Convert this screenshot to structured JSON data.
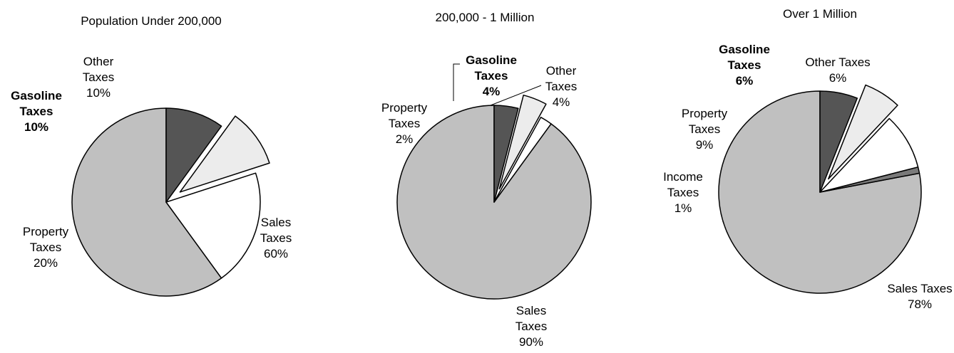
{
  "chart_data": [
    {
      "type": "pie",
      "title": "Population Under 200,000",
      "slices": [
        {
          "label": "Sales Taxes",
          "value": 60,
          "value_label": "60%",
          "color": "#c0c0c0",
          "exploded": false,
          "bold": false
        },
        {
          "label": "Property Taxes",
          "value": 20,
          "value_label": "20%",
          "color": "#ffffff",
          "exploded": false,
          "bold": false
        },
        {
          "label": "Gasoline Taxes",
          "value": 10,
          "value_label": "10%",
          "color": "#ececec",
          "exploded": true,
          "bold": true
        },
        {
          "label": "Other Taxes",
          "value": 10,
          "value_label": "10%",
          "color": "#555555",
          "exploded": false,
          "bold": false
        }
      ]
    },
    {
      "type": "pie",
      "title": "200,000 - 1 Million",
      "slices": [
        {
          "label": "Sales Taxes",
          "value": 90,
          "value_label": "90%",
          "color": "#c0c0c0",
          "exploded": false,
          "bold": false
        },
        {
          "label": "Property Taxes",
          "value": 2,
          "value_label": "2%",
          "color": "#ffffff",
          "exploded": false,
          "bold": false
        },
        {
          "label": "Gasoline Taxes",
          "value": 4,
          "value_label": "4%",
          "color": "#ececec",
          "exploded": true,
          "bold": true
        },
        {
          "label": "Other Taxes",
          "value": 4,
          "value_label": "4%",
          "color": "#555555",
          "exploded": false,
          "bold": false
        }
      ]
    },
    {
      "type": "pie",
      "title": "Over 1 Million",
      "slices": [
        {
          "label": "Sales Taxes",
          "value": 78,
          "value_label": "78%",
          "color": "#c0c0c0",
          "exploded": false,
          "bold": false
        },
        {
          "label": "Income Taxes",
          "value": 1,
          "value_label": "1%",
          "color": "#7a7a7a",
          "exploded": false,
          "bold": false
        },
        {
          "label": "Property Taxes",
          "value": 9,
          "value_label": "9%",
          "color": "#ffffff",
          "exploded": false,
          "bold": false
        },
        {
          "label": "Gasoline Taxes",
          "value": 6,
          "value_label": "6%",
          "color": "#ececec",
          "exploded": true,
          "bold": true
        },
        {
          "label": "Other Taxes",
          "value": 6,
          "value_label": "6%",
          "color": "#555555",
          "exploded": false,
          "bold": false
        }
      ]
    }
  ]
}
